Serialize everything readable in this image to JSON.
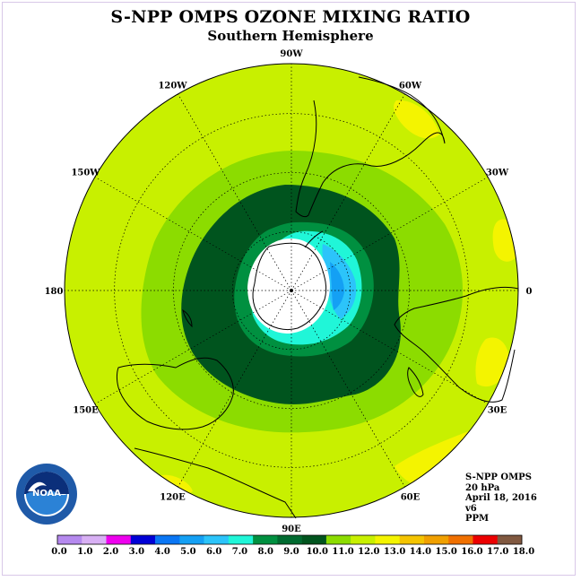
{
  "title": "S-NPP OMPS OZONE MIXING RATIO",
  "subtitle": "Southern Hemisphere",
  "map": {
    "projection": "south-polar-stereographic",
    "longitude_labels": [
      {
        "text": "90W",
        "angle": 90
      },
      {
        "text": "60W",
        "angle": 60
      },
      {
        "text": "30W",
        "angle": 30
      },
      {
        "text": "0",
        "angle": 0
      },
      {
        "text": "30E",
        "angle": -30
      },
      {
        "text": "60E",
        "angle": -60
      },
      {
        "text": "90E",
        "angle": -90
      },
      {
        "text": "120E",
        "angle": -120
      },
      {
        "text": "150E",
        "angle": -150
      },
      {
        "text": "180",
        "angle": 180
      },
      {
        "text": "150W",
        "angle": 150
      },
      {
        "text": "120W",
        "angle": 120
      }
    ],
    "no_data_color": "#ffffff",
    "land_outline_color": "#000000"
  },
  "info": {
    "line1": "S-NPP OMPS",
    "line2": "20 hPa",
    "line3": "April 18, 2016",
    "line4": "v6",
    "line5": "PPM"
  },
  "logo": {
    "text": "NOAA",
    "icon": "noaa-logo-icon"
  },
  "colorbar": {
    "colors": [
      "#b589ee",
      "#d8b0f4",
      "#ee00ee",
      "#0000d6",
      "#0a76f4",
      "#14a0f4",
      "#2cc4fa",
      "#20f6d8",
      "#009040",
      "#006a30",
      "#00541e",
      "#8cdc00",
      "#c8f000",
      "#f4f400",
      "#f4c400",
      "#f0a000",
      "#f07000",
      "#ec0000",
      "#805840"
    ],
    "labels": [
      "0.0",
      "1.0",
      "2.0",
      "3.0",
      "4.0",
      "5.0",
      "6.0",
      "7.0",
      "8.0",
      "9.0",
      "10.0",
      "11.0",
      "12.0",
      "13.0",
      "14.0",
      "15.0",
      "16.0",
      "17.0",
      "18.0"
    ]
  }
}
